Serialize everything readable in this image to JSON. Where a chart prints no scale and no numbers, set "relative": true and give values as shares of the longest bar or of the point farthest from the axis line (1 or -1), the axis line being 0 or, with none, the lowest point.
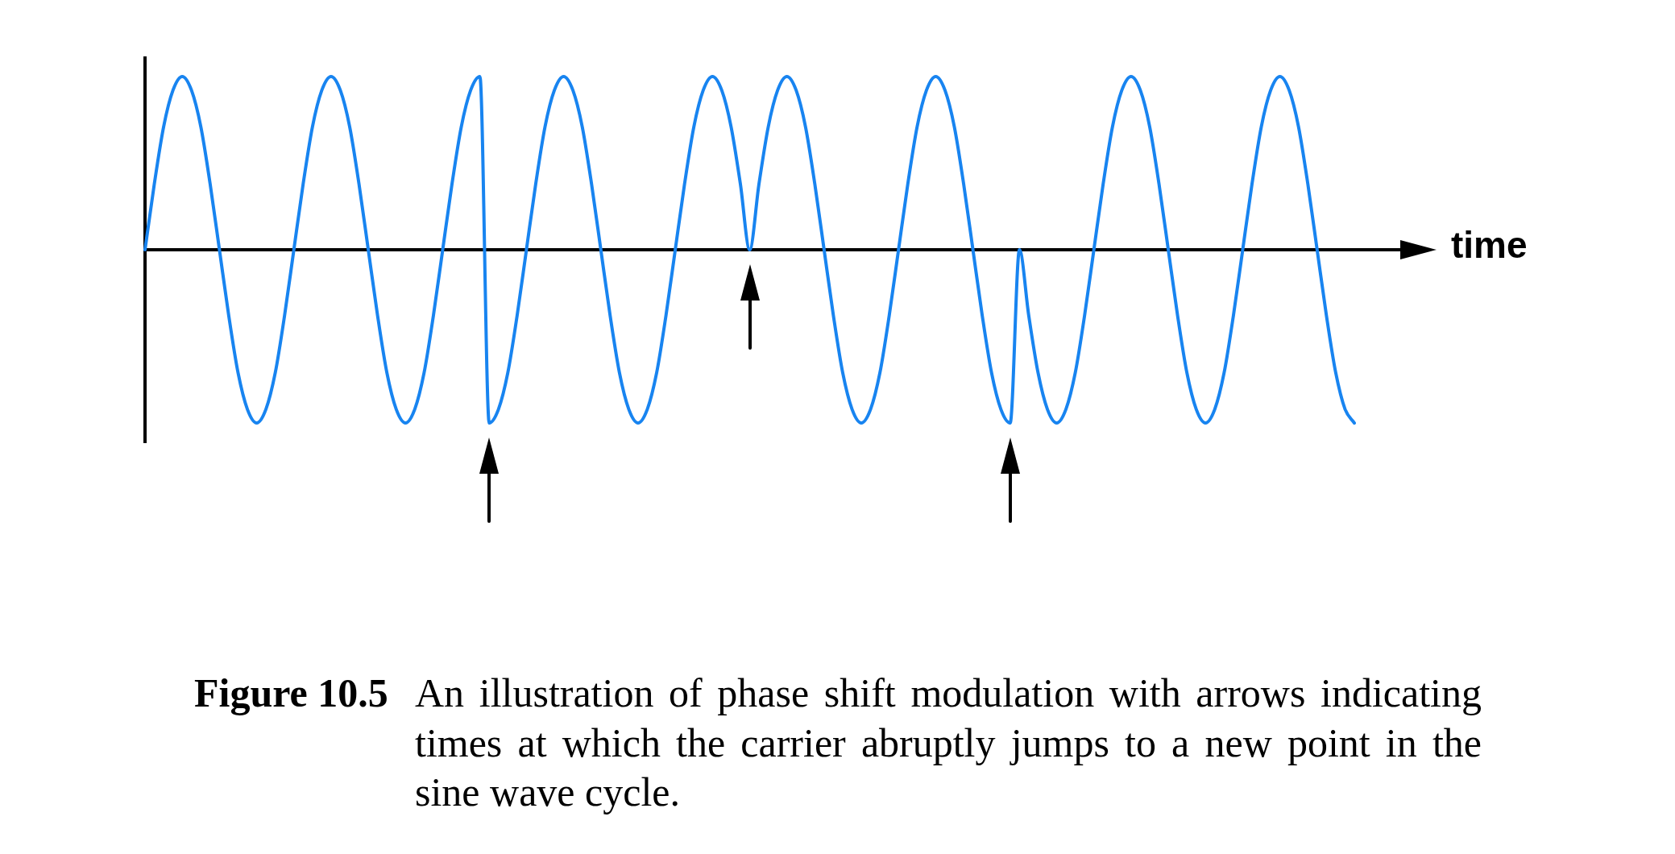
{
  "chart_data": {
    "type": "line",
    "relative": true,
    "xlabel": "time",
    "categories": [
      null,
      null,
      null,
      null,
      null,
      null,
      null,
      null,
      null,
      null,
      null,
      null,
      null,
      null,
      null,
      null,
      null,
      null,
      null,
      null,
      null,
      null,
      null,
      null,
      null,
      null,
      null,
      null,
      null,
      null,
      null,
      null,
      null,
      null,
      null,
      null,
      null,
      null,
      null,
      null,
      null,
      null,
      null,
      null,
      null,
      null,
      null,
      null,
      null,
      null,
      null,
      null,
      null,
      null,
      null,
      null,
      null,
      null,
      null,
      null,
      null,
      null,
      null,
      null,
      null,
      null,
      null,
      null,
      null,
      null,
      null,
      null,
      null,
      null,
      null,
      null,
      null,
      null,
      null,
      null,
      null,
      null,
      null,
      null,
      null,
      null,
      null,
      null,
      null,
      null,
      null,
      null,
      null,
      null,
      null,
      null,
      null,
      null,
      null,
      null,
      null,
      null,
      null,
      null,
      null,
      null,
      null,
      null,
      null,
      null,
      null,
      null,
      null,
      null,
      null,
      null,
      null,
      null,
      null,
      null,
      null,
      null,
      null,
      null,
      null,
      null,
      null,
      null,
      null,
      null,
      null
    ],
    "values": [
      0,
      0.38,
      0.71,
      0.92,
      1,
      0.92,
      0.71,
      0.38,
      0,
      -0.38,
      -0.71,
      -0.92,
      -1,
      -0.92,
      -0.71,
      -0.38,
      0,
      0.38,
      0.71,
      0.92,
      1,
      0.92,
      0.71,
      0.38,
      0,
      -0.38,
      -0.71,
      -0.92,
      -1,
      -0.92,
      -0.71,
      -0.38,
      0,
      0.38,
      0.71,
      0.92,
      1,
      -1,
      -0.92,
      -0.71,
      -0.38,
      0,
      0.38,
      0.71,
      0.92,
      1,
      0.92,
      0.71,
      0.38,
      0,
      -0.38,
      -0.71,
      -0.92,
      -1,
      -0.92,
      -0.71,
      -0.38,
      0,
      0.38,
      0.71,
      0.92,
      1,
      0.92,
      0.71,
      0.38,
      0,
      0.38,
      0.71,
      0.92,
      1,
      0.92,
      0.71,
      0.38,
      0,
      -0.38,
      -0.71,
      -0.92,
      -1,
      -0.92,
      -0.71,
      -0.38,
      0,
      0.38,
      0.71,
      0.92,
      1,
      0.92,
      0.71,
      0.38,
      0,
      -0.38,
      -0.71,
      -0.92,
      -1,
      0,
      -0.38,
      -0.71,
      -0.92,
      -1,
      -0.92,
      -0.71,
      -0.38,
      0,
      0.38,
      0.71,
      0.92,
      1,
      0.92,
      0.71,
      0.38,
      0,
      -0.38,
      -0.71,
      -0.92,
      -1,
      -0.92,
      -0.71,
      -0.38,
      0,
      0.38,
      0.71,
      0.92,
      1,
      0.92,
      0.71,
      0.38,
      0,
      -0.38,
      -0.71,
      -0.92,
      -1
    ],
    "color": "#1884f0",
    "marker": "none",
    "line_style": "solid",
    "annotations": [
      "Figure 10.5",
      "An illustration of phase shift modulation with arrows indicating times at which the carrier abruptly jumps to a new point in the sine wave cycle."
    ]
  }
}
